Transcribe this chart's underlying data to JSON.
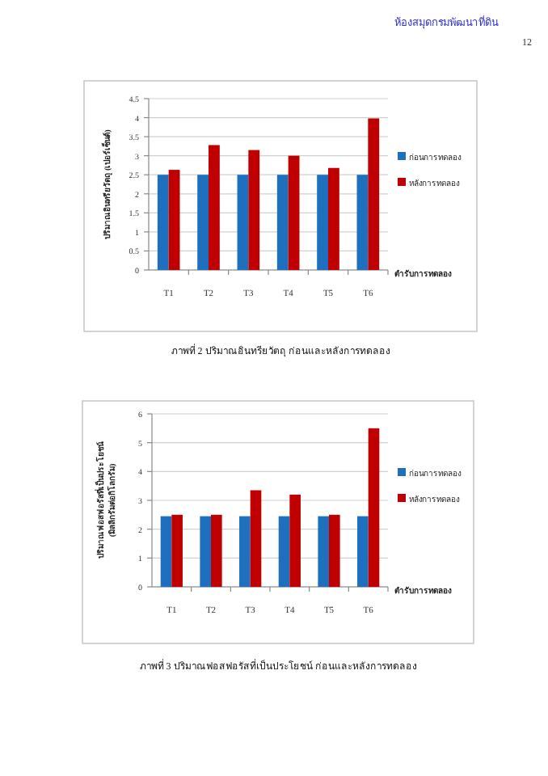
{
  "chart_data": [
    {
      "type": "bar",
      "title": "ภาพที่ 2 ปริมาณอินทรียวัตถุ ก่อนและหลังการทดลอง",
      "ylabel": "ปริมาณอินทรียวัตถุ (เปอร์เซ็นต์)",
      "xlabel": "ตำรับการทดลอง",
      "annotations": [
        "ห้องสมุดกรมพัฒนาที่ดิน",
        "12"
      ],
      "categories": [
        "T1",
        "T2",
        "T3",
        "T4",
        "T5",
        "T6"
      ],
      "series": [
        {
          "name": "ก่อนการทดลอง",
          "color": "#1f6fbf",
          "values": [
            2.5,
            2.5,
            2.5,
            2.5,
            2.5,
            2.5
          ]
        },
        {
          "name": "หลังการทดลอง",
          "color": "#c00000",
          "values": [
            2.63,
            3.28,
            3.15,
            3.0,
            2.68,
            3.98
          ]
        }
      ],
      "ylim": [
        0,
        4.5
      ],
      "yticks": [
        0,
        0.5,
        1,
        1.5,
        2,
        2.5,
        3,
        3.5,
        4,
        4.5
      ],
      "grid": "y",
      "legend": "right"
    },
    {
      "type": "bar",
      "title": "ภาพที่ 3 ปริมาณฟอสฟอรัสที่เป็นประโยชน์ ก่อนและหลังการทดลอง",
      "ylabel": "ปริมาณฟอสฟอรัสที่เป็นประโยชน์ (มิลลิกรัมต่อกิโลกรัม)",
      "xlabel": "ตำรับการทดลอง",
      "categories": [
        "T1",
        "T2",
        "T3",
        "T4",
        "T5",
        "T6"
      ],
      "series": [
        {
          "name": "ก่อนการทดลอง",
          "color": "#1f6fbf",
          "values": [
            2.45,
            2.45,
            2.45,
            2.45,
            2.45,
            2.45
          ]
        },
        {
          "name": "หลังการทดลอง",
          "color": "#c00000",
          "values": [
            2.5,
            2.5,
            3.35,
            3.2,
            2.5,
            5.5
          ]
        }
      ],
      "ylim": [
        0,
        6
      ],
      "yticks": [
        0,
        1,
        2,
        3,
        4,
        5,
        6
      ],
      "grid": "y",
      "legend": "right"
    }
  ]
}
